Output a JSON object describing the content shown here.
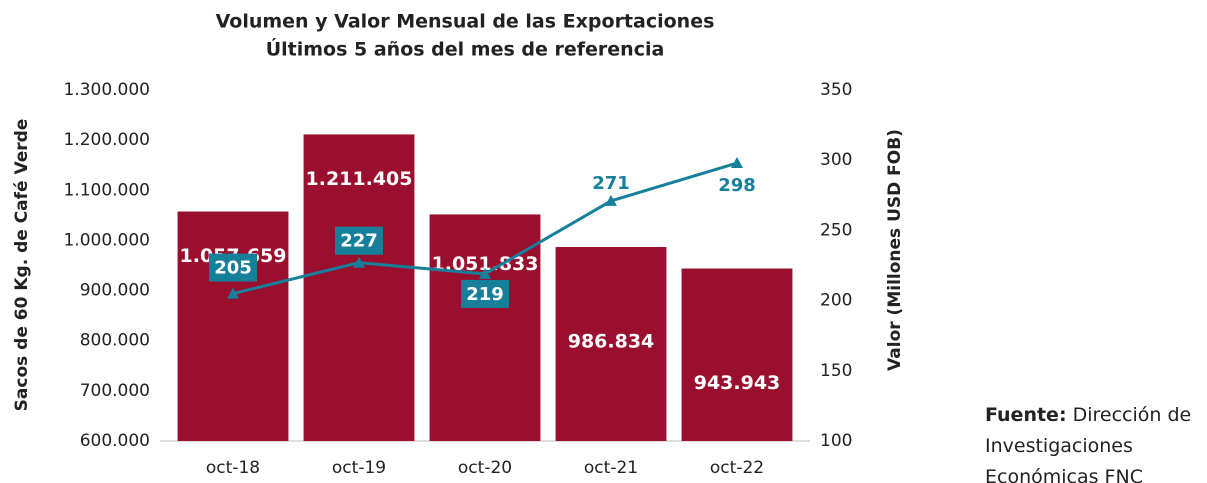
{
  "chart_data": {
    "type": "bar-line",
    "title": "Volumen y Valor Mensual de las Exportaciones",
    "subtitle": "Últimos 5 años del mes de referencia",
    "y_label": "Sacos de 60 Kg. de Café Verde",
    "y2_label": "Valor (Millones USD FOB)",
    "categories": [
      "oct-18",
      "oct-19",
      "oct-20",
      "oct-21",
      "oct-22"
    ],
    "series": [
      {
        "name": "Volumen",
        "type": "bar",
        "color": "#9b0f2e",
        "axis": "y",
        "values": [
          1057659,
          1211405,
          1051833,
          986834,
          943943
        ],
        "value_labels": [
          "1.057.659",
          "1.211.405",
          "1.051.833",
          "986.834",
          "943.943"
        ]
      },
      {
        "name": "Valor",
        "type": "line",
        "color": "#167f9a",
        "axis": "y2",
        "values": [
          205,
          227,
          219,
          271,
          298
        ]
      }
    ],
    "ylim": [
      600000,
      1300000
    ],
    "yticks": [
      {
        "value": 600000,
        "label": "600.000"
      },
      {
        "value": 700000,
        "label": "700.000"
      },
      {
        "value": 800000,
        "label": "800.000"
      },
      {
        "value": 900000,
        "label": "900.000"
      },
      {
        "value": 1000000,
        "label": "1.000.000"
      },
      {
        "value": 1100000,
        "label": "1.100.000"
      },
      {
        "value": 1200000,
        "label": "1.200.000"
      },
      {
        "value": 1300000,
        "label": "1.300.000"
      }
    ],
    "y2lim": [
      100,
      350
    ],
    "y2ticks": [
      100,
      150,
      200,
      250,
      300,
      350
    ],
    "grid": false,
    "source_label": "Fuente:",
    "source": "Dirección de Investigaciones Económicas FNC"
  }
}
